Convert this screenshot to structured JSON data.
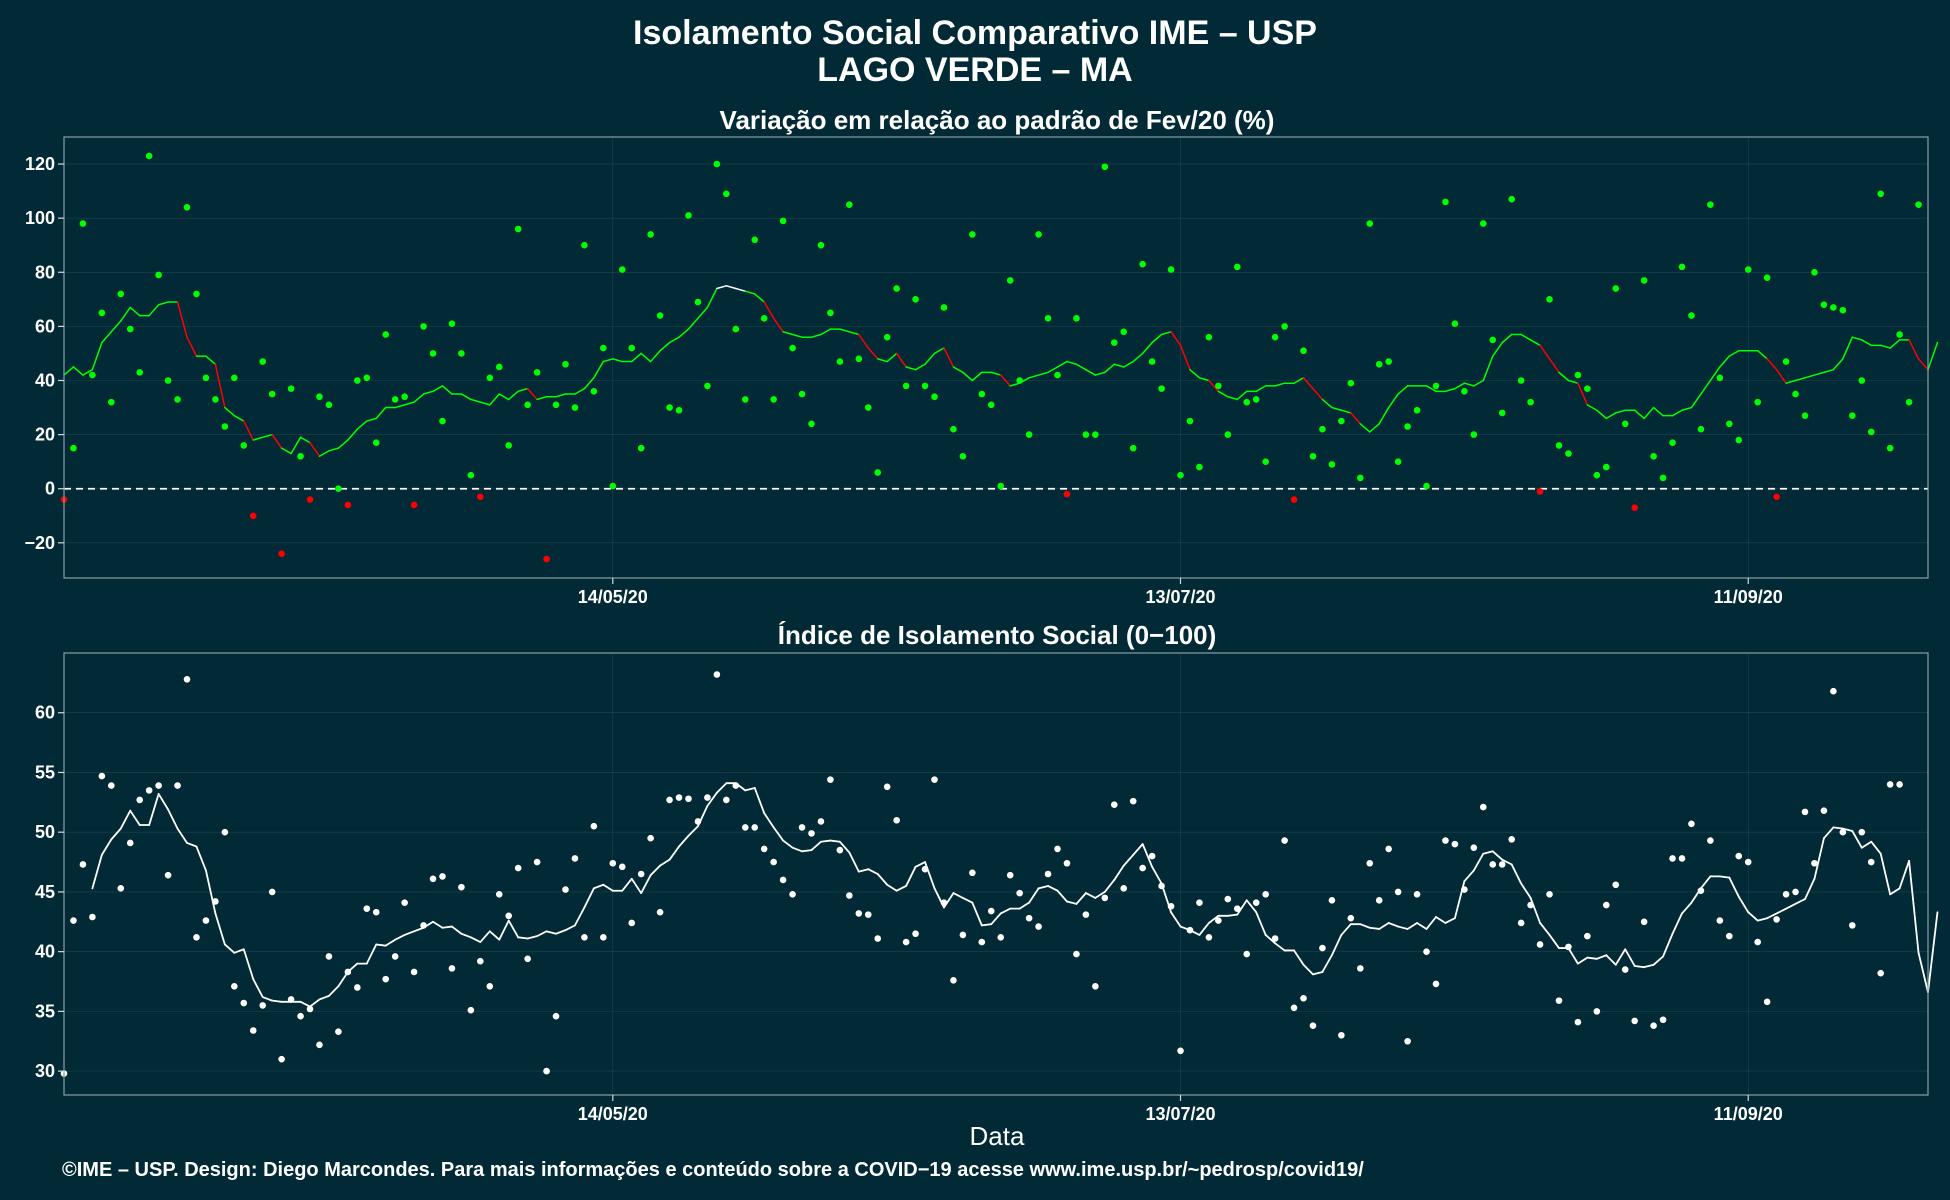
{
  "figure": {
    "title_line1": "Isolamento Social Comparativo IME – USP",
    "title_line2": "LAGO VERDE – MA",
    "xlabel": "Data",
    "footer": "©IME – USP. Design: Diego Marcondes. Para mais informações e conteúdo sobre a COVID−19 acesse www.ime.usp.br/~pedrosp/covid19/",
    "colors": {
      "background": "#012a36",
      "positive": "#00ff00",
      "negative": "#ff0000",
      "index": "#ffffff",
      "grid": "#28505b"
    }
  },
  "chart_data": [
    {
      "type": "scatter",
      "title": "Variação em relação ao padrão de Fev/20 (%)",
      "xlabel": "",
      "ylabel": "",
      "x_range": [
        "2020-03-17",
        "2020-09-30"
      ],
      "ylim": [
        -33,
        130
      ],
      "yticks": [
        120,
        100,
        80,
        60,
        40,
        20,
        0,
        -20
      ],
      "ytick_labels": [
        "120",
        "100",
        "80",
        "60",
        "40",
        "20",
        "0",
        "−20"
      ],
      "xticks": [
        "2020-05-14",
        "2020-07-13",
        "2020-09-11"
      ],
      "xtick_labels": [
        "14/05/20",
        "13/07/20",
        "11/09/20"
      ],
      "reference_line": 0,
      "grid": true,
      "series": [
        {
          "role": "daily",
          "values": [
            -4,
            15,
            98,
            42,
            65,
            32,
            72,
            59,
            43,
            123,
            79,
            40,
            33,
            104,
            72,
            41,
            33,
            23,
            41,
            16,
            -10,
            47,
            35,
            -24,
            37,
            12,
            -4,
            34,
            31,
            0,
            -6,
            40,
            41,
            17,
            57,
            33,
            34,
            -6,
            60,
            50,
            25,
            61,
            50,
            5,
            -3,
            41,
            45,
            16,
            96,
            31,
            43,
            -26,
            31,
            46,
            30,
            90,
            36,
            52,
            1,
            81,
            52,
            15,
            94,
            64,
            30,
            29,
            101,
            69,
            38,
            120,
            109,
            59,
            33,
            92,
            63,
            33,
            99,
            52,
            35,
            24,
            90,
            65,
            47,
            105,
            48,
            30,
            6,
            56,
            74,
            38,
            70,
            38,
            34,
            67,
            22,
            12,
            94,
            35,
            31,
            1,
            77,
            40,
            20,
            94,
            63,
            42,
            -2,
            63,
            20,
            20,
            119,
            54,
            58,
            15,
            83,
            47,
            37,
            81,
            5,
            25,
            8,
            56,
            38,
            20,
            82,
            32,
            33,
            10,
            56,
            60,
            -4,
            51,
            12,
            22,
            9,
            25,
            39,
            4,
            98,
            46,
            47,
            10,
            23,
            29,
            1,
            38,
            106,
            61,
            36,
            20,
            98,
            55,
            28,
            107,
            40,
            32,
            -1,
            70,
            16,
            13,
            42,
            37,
            5,
            8,
            74,
            24,
            -7,
            77,
            12,
            4,
            17,
            82,
            64,
            22,
            105,
            41,
            24,
            18,
            81,
            32,
            78,
            -3,
            47,
            35,
            27,
            80,
            68,
            67,
            66,
            27,
            40,
            21,
            109,
            15,
            57,
            32,
            105
          ],
          "moving_average": [
            42,
            45,
            42,
            44,
            54,
            58,
            62,
            67,
            64,
            64,
            68,
            69,
            69,
            56,
            49,
            49,
            46,
            30,
            27,
            25,
            18,
            19,
            20,
            15,
            13,
            19,
            17,
            12,
            14,
            15,
            18,
            22,
            25,
            26,
            30,
            30,
            31,
            32,
            35,
            36,
            38,
            35,
            35,
            33,
            32,
            31,
            35,
            33,
            36,
            37,
            33,
            34,
            34,
            35,
            35,
            37,
            41,
            47,
            48,
            47,
            47,
            50,
            47,
            51,
            54,
            56,
            59,
            63,
            67,
            74,
            75,
            74,
            73,
            72,
            69,
            63,
            58,
            57,
            56,
            56,
            57,
            59,
            59,
            58,
            57,
            52,
            48,
            47,
            50,
            45,
            44,
            46,
            50,
            52,
            45,
            43,
            40,
            43,
            43,
            42,
            38,
            39,
            41,
            42,
            43,
            45,
            47,
            46,
            44,
            42,
            43,
            46,
            45,
            47,
            50,
            54,
            57,
            58,
            53,
            44,
            41,
            40,
            36,
            34,
            33,
            36,
            36,
            38,
            38,
            39,
            39,
            41,
            37,
            33,
            30,
            29,
            28,
            24,
            21,
            24,
            30,
            35,
            38,
            38,
            38,
            36,
            36,
            37,
            39,
            38,
            40,
            49,
            54,
            57,
            57,
            55,
            53,
            48,
            43,
            40,
            39,
            31,
            29,
            26,
            28,
            29,
            29,
            26,
            30,
            27,
            27,
            29,
            30,
            35,
            40,
            45,
            49,
            51,
            51,
            51,
            48,
            44,
            39,
            40,
            41,
            42,
            43,
            44,
            48,
            56,
            55,
            53,
            53,
            52,
            55,
            55,
            48,
            44,
            54
          ]
        }
      ]
    },
    {
      "type": "scatter",
      "title": "Índice de Isolamento Social (0−100)",
      "xlabel": "Data",
      "ylabel": "",
      "x_range": [
        "2020-03-17",
        "2020-09-30"
      ],
      "ylim": [
        28,
        65
      ],
      "yticks": [
        60,
        55,
        50,
        45,
        40,
        35,
        30
      ],
      "ytick_labels": [
        "60",
        "55",
        "50",
        "45",
        "40",
        "35",
        "30"
      ],
      "xticks": [
        "2020-05-14",
        "2020-07-13",
        "2020-09-11"
      ],
      "xtick_labels": [
        "14/05/20",
        "13/07/20",
        "11/09/20"
      ],
      "grid": true,
      "series": [
        {
          "role": "daily",
          "values": [
            29.8,
            42.6,
            47.3,
            42.9,
            54.7,
            53.9,
            45.3,
            49.1,
            52.7,
            53.5,
            53.9,
            46.4,
            53.9,
            62.8,
            41.2,
            42.6,
            44.2,
            50.0,
            37.1,
            35.7,
            33.4,
            35.5,
            45.0,
            31.0,
            36.0,
            34.6,
            35.2,
            32.2,
            39.6,
            33.3,
            38.3,
            37.0,
            43.6,
            43.3,
            37.7,
            39.6,
            44.1,
            38.3,
            42.2,
            46.1,
            46.3,
            38.6,
            45.4,
            35.1,
            39.2,
            37.1,
            44.8,
            43.0,
            47.0,
            39.4,
            47.5,
            30.0,
            34.6,
            45.2,
            47.8,
            41.2,
            50.5,
            41.2,
            47.4,
            47.1,
            42.4,
            46.5,
            49.5,
            43.3,
            52.7,
            52.9,
            52.8,
            50.9,
            52.9,
            63.2,
            52.7,
            53.9,
            50.4,
            50.4,
            48.6,
            47.5,
            46.0,
            44.8,
            50.4,
            49.9,
            50.9,
            54.4,
            48.5,
            44.7,
            43.2,
            43.1,
            41.1,
            53.8,
            51.0,
            40.8,
            41.5,
            46.9,
            54.4,
            44.1,
            37.6,
            41.4,
            46.6,
            40.8,
            43.4,
            41.2,
            46.4,
            44.9,
            42.8,
            42.1,
            46.5,
            48.6,
            47.4,
            39.8,
            43.1,
            37.1,
            44.5,
            52.3,
            45.3,
            52.6,
            47.0,
            48.0,
            45.5,
            43.8,
            31.7,
            41.8,
            44.1,
            41.2,
            42.6,
            44.4,
            43.6,
            39.8,
            44.1,
            44.8,
            41.1,
            49.3,
            35.3,
            36.1,
            33.8,
            40.3,
            44.3,
            33.0,
            42.8,
            38.6,
            47.4,
            44.3,
            48.6,
            45.0,
            32.5,
            44.8,
            40.0,
            37.3,
            49.3,
            49.0,
            45.2,
            48.7,
            52.1,
            47.3,
            47.3,
            49.4,
            42.4,
            43.9,
            40.6,
            44.8,
            35.9,
            40.4,
            34.1,
            41.3,
            35.0,
            43.9,
            45.6,
            38.5,
            34.2,
            42.5,
            33.8,
            34.3,
            47.8,
            47.8,
            50.7,
            45.1,
            49.3,
            42.6,
            41.3,
            48.0,
            47.5,
            40.8,
            35.8,
            42.7,
            44.8,
            45.0,
            51.7,
            47.4,
            51.8,
            61.8,
            50.0,
            42.2,
            50.0,
            47.5,
            38.2,
            54.0,
            54.0
          ],
          "moving_average": [
            null,
            null,
            null,
            45.3,
            48.1,
            49.4,
            50.3,
            51.8,
            50.6,
            50.6,
            53.2,
            51.9,
            50.3,
            49.1,
            48.8,
            46.8,
            43.2,
            40.6,
            39.9,
            40.2,
            37.7,
            36.2,
            35.9,
            35.8,
            35.8,
            35.8,
            35.4,
            36.0,
            36.3,
            37.1,
            38.3,
            39.0,
            39.0,
            40.6,
            40.5,
            41.0,
            41.4,
            41.7,
            42.0,
            42.5,
            42.0,
            42.1,
            41.5,
            41.2,
            40.8,
            41.7,
            41.0,
            42.6,
            41.2,
            41.1,
            41.3,
            41.7,
            41.5,
            41.8,
            42.2,
            43.7,
            45.3,
            45.6,
            45.1,
            45.1,
            46.1,
            44.9,
            46.4,
            47.2,
            47.7,
            48.8,
            49.7,
            50.5,
            52.2,
            53.3,
            54.1,
            54.1,
            53.5,
            53.7,
            51.6,
            50.4,
            49.3,
            48.7,
            48.4,
            48.5,
            49.2,
            49.3,
            49.2,
            48.3,
            46.7,
            46.9,
            46.5,
            45.6,
            45.1,
            45.5,
            47.1,
            47.5,
            45.3,
            43.7,
            44.9,
            44.5,
            44.1,
            42.2,
            42.3,
            43.2,
            43.6,
            43.6,
            44.1,
            45.3,
            45.5,
            45.1,
            44.2,
            44.0,
            44.9,
            44.5,
            45.0,
            46.0,
            47.2,
            48.1,
            49.0,
            47.1,
            45.7,
            43.3,
            42.1,
            41.8,
            41.4,
            42.4,
            43.0,
            43.0,
            43.1,
            44.3,
            43.3,
            41.4,
            40.7,
            40.1,
            40.1,
            38.9,
            38.1,
            38.3,
            39.7,
            41.4,
            42.3,
            42.3,
            42.0,
            41.9,
            42.4,
            42.1,
            41.9,
            42.4,
            41.9,
            42.9,
            42.4,
            42.8,
            45.9,
            46.8,
            48.2,
            48.4,
            47.7,
            47.3,
            45.7,
            44.5,
            42.4,
            41.4,
            40.3,
            40.3,
            39.0,
            39.5,
            39.4,
            39.7,
            38.9,
            40.2,
            38.8,
            38.7,
            38.9,
            39.6,
            41.5,
            43.2,
            44.1,
            45.3,
            46.3,
            46.3,
            46.2,
            44.6,
            43.3,
            42.6,
            42.8,
            43.2,
            43.6,
            44.0,
            44.4,
            46.1,
            49.5,
            50.4,
            50.3,
            50.1,
            48.7,
            49.2,
            48.2,
            44.8,
            45.3,
            47.6,
            39.9,
            36.6,
            43.3
          ]
        }
      ]
    }
  ]
}
